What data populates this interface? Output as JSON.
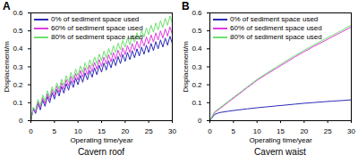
{
  "chart_data": [
    {
      "type": "line",
      "title": "Cavern roof",
      "annotations": [
        "A"
      ],
      "x_label": "Operating time/year",
      "y_label": "Displacement/m",
      "x": [
        0,
        0.5,
        1,
        1.5,
        2,
        2.5,
        3,
        3.5,
        4,
        4.5,
        5,
        5.5,
        6,
        6.5,
        7,
        7.5,
        8,
        8.5,
        9,
        9.5,
        10,
        10.5,
        11,
        11.5,
        12,
        12.5,
        13,
        13.5,
        14,
        14.5,
        15,
        15.5,
        16,
        16.5,
        17,
        17.5,
        18,
        18.5,
        19,
        19.5,
        20,
        20.5,
        21,
        21.5,
        22,
        22.5,
        23,
        23.5,
        24,
        24.5,
        25,
        25.5,
        26,
        26.5,
        27,
        27.5,
        28,
        28.5,
        29,
        29.5,
        30
      ],
      "series": [
        {
          "name": "0% of sediment space used",
          "color": "#2a2ab8",
          "values": [
            0,
            0.065,
            0.04,
            0.095,
            0.06,
            0.115,
            0.08,
            0.135,
            0.1,
            0.155,
            0.12,
            0.173,
            0.137,
            0.19,
            0.153,
            0.206,
            0.17,
            0.222,
            0.185,
            0.237,
            0.2,
            0.252,
            0.214,
            0.266,
            0.228,
            0.28,
            0.242,
            0.294,
            0.256,
            0.308,
            0.27,
            0.321,
            0.282,
            0.333,
            0.294,
            0.345,
            0.306,
            0.357,
            0.318,
            0.369,
            0.33,
            0.38,
            0.34,
            0.39,
            0.35,
            0.4,
            0.36,
            0.41,
            0.37,
            0.42,
            0.38,
            0.43,
            0.39,
            0.44,
            0.4,
            0.45,
            0.41,
            0.46,
            0.42,
            0.47,
            0.43
          ]
        },
        {
          "name": "60% of sediment space used",
          "color": "#e03ce0",
          "values": [
            0,
            0.07,
            0.05,
            0.106,
            0.072,
            0.129,
            0.095,
            0.151,
            0.117,
            0.173,
            0.138,
            0.193,
            0.157,
            0.211,
            0.175,
            0.229,
            0.193,
            0.247,
            0.21,
            0.263,
            0.226,
            0.279,
            0.242,
            0.295,
            0.257,
            0.31,
            0.272,
            0.325,
            0.287,
            0.34,
            0.302,
            0.354,
            0.315,
            0.367,
            0.328,
            0.38,
            0.341,
            0.393,
            0.354,
            0.406,
            0.367,
            0.418,
            0.379,
            0.43,
            0.391,
            0.442,
            0.403,
            0.454,
            0.415,
            0.466,
            0.427,
            0.478,
            0.438,
            0.489,
            0.449,
            0.5,
            0.46,
            0.511,
            0.471,
            0.522,
            0.482
          ]
        },
        {
          "name": "80% of sediment space used",
          "color": "#6ee06e",
          "values": [
            0,
            0.075,
            0.06,
            0.118,
            0.085,
            0.143,
            0.11,
            0.167,
            0.133,
            0.189,
            0.155,
            0.211,
            0.176,
            0.231,
            0.196,
            0.251,
            0.215,
            0.269,
            0.233,
            0.287,
            0.251,
            0.305,
            0.268,
            0.322,
            0.285,
            0.339,
            0.302,
            0.355,
            0.318,
            0.371,
            0.334,
            0.387,
            0.349,
            0.402,
            0.364,
            0.417,
            0.379,
            0.432,
            0.394,
            0.447,
            0.409,
            0.461,
            0.423,
            0.475,
            0.437,
            0.489,
            0.451,
            0.503,
            0.465,
            0.517,
            0.479,
            0.531,
            0.492,
            0.544,
            0.505,
            0.557,
            0.518,
            0.57,
            0.531,
            0.583,
            0.544
          ]
        }
      ],
      "xlim": [
        0,
        30
      ],
      "xticks": [
        0,
        5,
        10,
        15,
        20,
        25,
        30
      ],
      "ylim": [
        0,
        0.6
      ],
      "yticks": [
        0,
        0.1,
        0.2,
        0.3,
        0.4,
        0.5,
        0.6
      ],
      "legend": "upper left"
    },
    {
      "type": "line",
      "title": "Cavern waist",
      "annotations": [
        "B"
      ],
      "x_label": "Operating time/year",
      "y_label": "Displacement/m",
      "x": [
        0,
        1,
        2,
        4,
        6,
        8,
        10,
        12,
        14,
        16,
        18,
        20,
        22,
        24,
        26,
        28,
        30
      ],
      "series": [
        {
          "name": "0% of sediment space used",
          "color": "#2a2ab8",
          "values": [
            0,
            0.035,
            0.045,
            0.053,
            0.06,
            0.066,
            0.072,
            0.077,
            0.082,
            0.087,
            0.092,
            0.097,
            0.101,
            0.105,
            0.109,
            0.112,
            0.116
          ]
        },
        {
          "name": "60% of sediment space used",
          "color": "#e03ce0",
          "values": [
            0,
            0.045,
            0.065,
            0.105,
            0.145,
            0.185,
            0.225,
            0.258,
            0.29,
            0.322,
            0.354,
            0.384,
            0.413,
            0.44,
            0.467,
            0.494,
            0.522
          ]
        },
        {
          "name": "80% of sediment space used",
          "color": "#6ee06e",
          "values": [
            0,
            0.05,
            0.07,
            0.11,
            0.15,
            0.19,
            0.23,
            0.264,
            0.297,
            0.33,
            0.362,
            0.392,
            0.421,
            0.449,
            0.476,
            0.503,
            0.532
          ]
        }
      ],
      "xlim": [
        0,
        30
      ],
      "xticks": [
        0,
        5,
        10,
        15,
        20,
        25,
        30
      ],
      "ylim": [
        0,
        0.6
      ],
      "yticks": [
        0,
        0.1,
        0.2,
        0.3,
        0.4,
        0.5,
        0.6
      ],
      "legend": "upper left"
    }
  ]
}
